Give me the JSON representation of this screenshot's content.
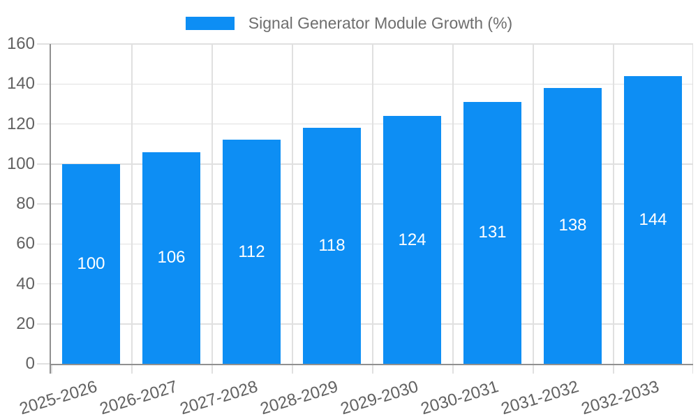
{
  "chart_data": {
    "type": "bar",
    "title": "",
    "legend": {
      "label": "Signal Generator Module Growth (%)",
      "position": "top-center"
    },
    "categories": [
      "2025-2026",
      "2026-2027",
      "2027-2028",
      "2028-2029",
      "2029-2030",
      "2030-2031",
      "2031-2032",
      "2032-2033"
    ],
    "series": [
      {
        "name": "Signal Generator Module Growth (%)",
        "values": [
          100,
          106,
          112,
          118,
          124,
          131,
          138,
          144
        ]
      }
    ],
    "value_labels_shown": true,
    "value_label_position": "inside-center",
    "xlabel": "",
    "ylabel": "",
    "ylim": [
      0,
      160
    ],
    "yticks": [
      0,
      20,
      40,
      60,
      80,
      100,
      120,
      140,
      160
    ],
    "grid": "horizontal-and-vertical",
    "colors": {
      "bar": "#0d8ef4",
      "gridline": "#e0e0e0",
      "axis_line": "#909090",
      "tick_text": "#616161",
      "legend_text": "#6e6e6e",
      "value_label_text": "#ffffff",
      "background": "#ffffff"
    }
  }
}
